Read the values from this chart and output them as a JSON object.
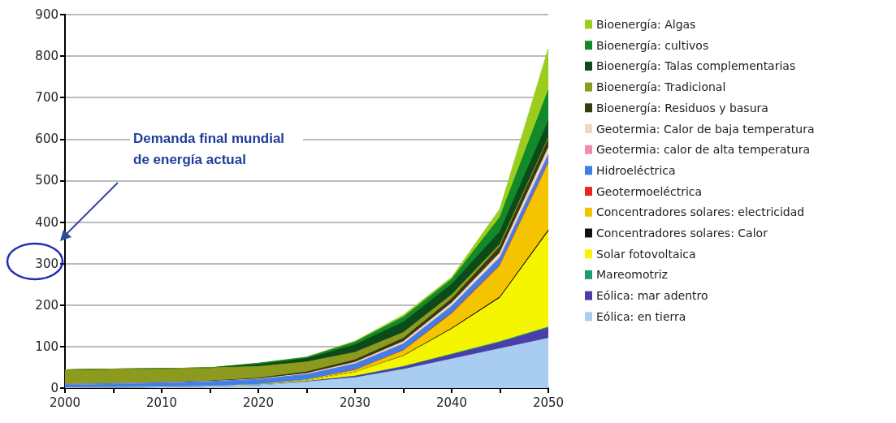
{
  "chart_data": {
    "type": "area",
    "stacked": true,
    "legend": "right",
    "grid": "y",
    "x": [
      2000,
      2005,
      2010,
      2015,
      2020,
      2025,
      2030,
      2035,
      2040,
      2045,
      2050
    ],
    "xlim": [
      2000,
      2050
    ],
    "xticks": [
      2000,
      {
        "value": 2005,
        "label": null
      },
      2010,
      {
        "value": 2015,
        "label": null
      },
      2020,
      {
        "value": 2025,
        "label": null
      },
      2030,
      {
        "value": 2035,
        "label": null
      },
      2040,
      {
        "value": 2045,
        "label": null
      },
      2050
    ],
    "ylim": [
      0,
      900
    ],
    "yticks": [
      0,
      100,
      200,
      300,
      400,
      500,
      600,
      700,
      800,
      900
    ],
    "annotations": [
      "Demanda final mundial de energía actual"
    ],
    "series": [
      {
        "name": "Eólica: en tierra",
        "color": "#a9cdf0",
        "values": [
          1,
          2,
          3,
          5,
          8,
          15,
          25,
          45,
          70,
          95,
          120
        ]
      },
      {
        "name": "Eólica: mar adentro",
        "color": "#4a3fa8",
        "values": [
          0,
          0,
          0,
          0,
          0,
          1,
          3,
          6,
          10,
          15,
          25
        ]
      },
      {
        "name": "Mareomotriz",
        "color": "#1f9a7a",
        "values": [
          0,
          0,
          0,
          0,
          0,
          0,
          1,
          1,
          2,
          2,
          2
        ]
      },
      {
        "name": "Solar fotovoltaica",
        "color": "#f5f500",
        "values": [
          0,
          0,
          0,
          0,
          1,
          3,
          10,
          25,
          60,
          105,
          230
        ]
      },
      {
        "name": "Concentradores solares: Calor",
        "color": "#101010",
        "values": [
          0,
          0,
          0,
          0,
          0,
          0,
          0,
          1,
          2,
          3,
          4
        ]
      },
      {
        "name": "Concentradores solares: electricidad",
        "color": "#f5c400",
        "values": [
          0,
          0,
          0,
          0,
          0,
          1,
          4,
          12,
          35,
          75,
          160
        ]
      },
      {
        "name": "Geotermoeléctrica",
        "color": "#e8261c",
        "values": [
          0,
          0,
          0,
          0,
          0,
          0,
          1,
          1,
          2,
          2,
          2
        ]
      },
      {
        "name": "Hidroeléctrica",
        "color": "#3f7fe8",
        "values": [
          8,
          9,
          10,
          11,
          12,
          13,
          14,
          15,
          16,
          17,
          18
        ]
      },
      {
        "name": "Geotermia: calor de alta temperatura",
        "color": "#f08cb4",
        "values": [
          0,
          0,
          0,
          0,
          0,
          0,
          1,
          1,
          1,
          2,
          3
        ]
      },
      {
        "name": "Geotermia: Calor de baja temperatura",
        "color": "#ead9c4",
        "values": [
          0,
          0,
          0,
          0,
          1,
          2,
          3,
          5,
          7,
          10,
          15
        ]
      },
      {
        "name": "Bioenergía: Residuos y basura",
        "color": "#3a3a10",
        "values": [
          0,
          0,
          0,
          1,
          2,
          4,
          6,
          8,
          10,
          15,
          20
        ]
      },
      {
        "name": "Bioenergía: Tradicional",
        "color": "#8c9a1e",
        "values": [
          35,
          35,
          34,
          32,
          28,
          24,
          18,
          14,
          10,
          6,
          4
        ]
      },
      {
        "name": "Bioenergía: Talas complementarias",
        "color": "#0d4a1a",
        "values": [
          0,
          0,
          0,
          0,
          5,
          8,
          18,
          25,
          25,
          30,
          40
        ]
      },
      {
        "name": "Bioenergía: cultivos",
        "color": "#138a2a",
        "values": [
          0,
          0,
          0,
          0,
          3,
          3,
          7,
          12,
          12,
          35,
          75
        ]
      },
      {
        "name": "Bioenergía: Algas",
        "color": "#9acd1e",
        "values": [
          0,
          0,
          0,
          0,
          0,
          1,
          2,
          5,
          5,
          20,
          100
        ]
      }
    ]
  }
}
